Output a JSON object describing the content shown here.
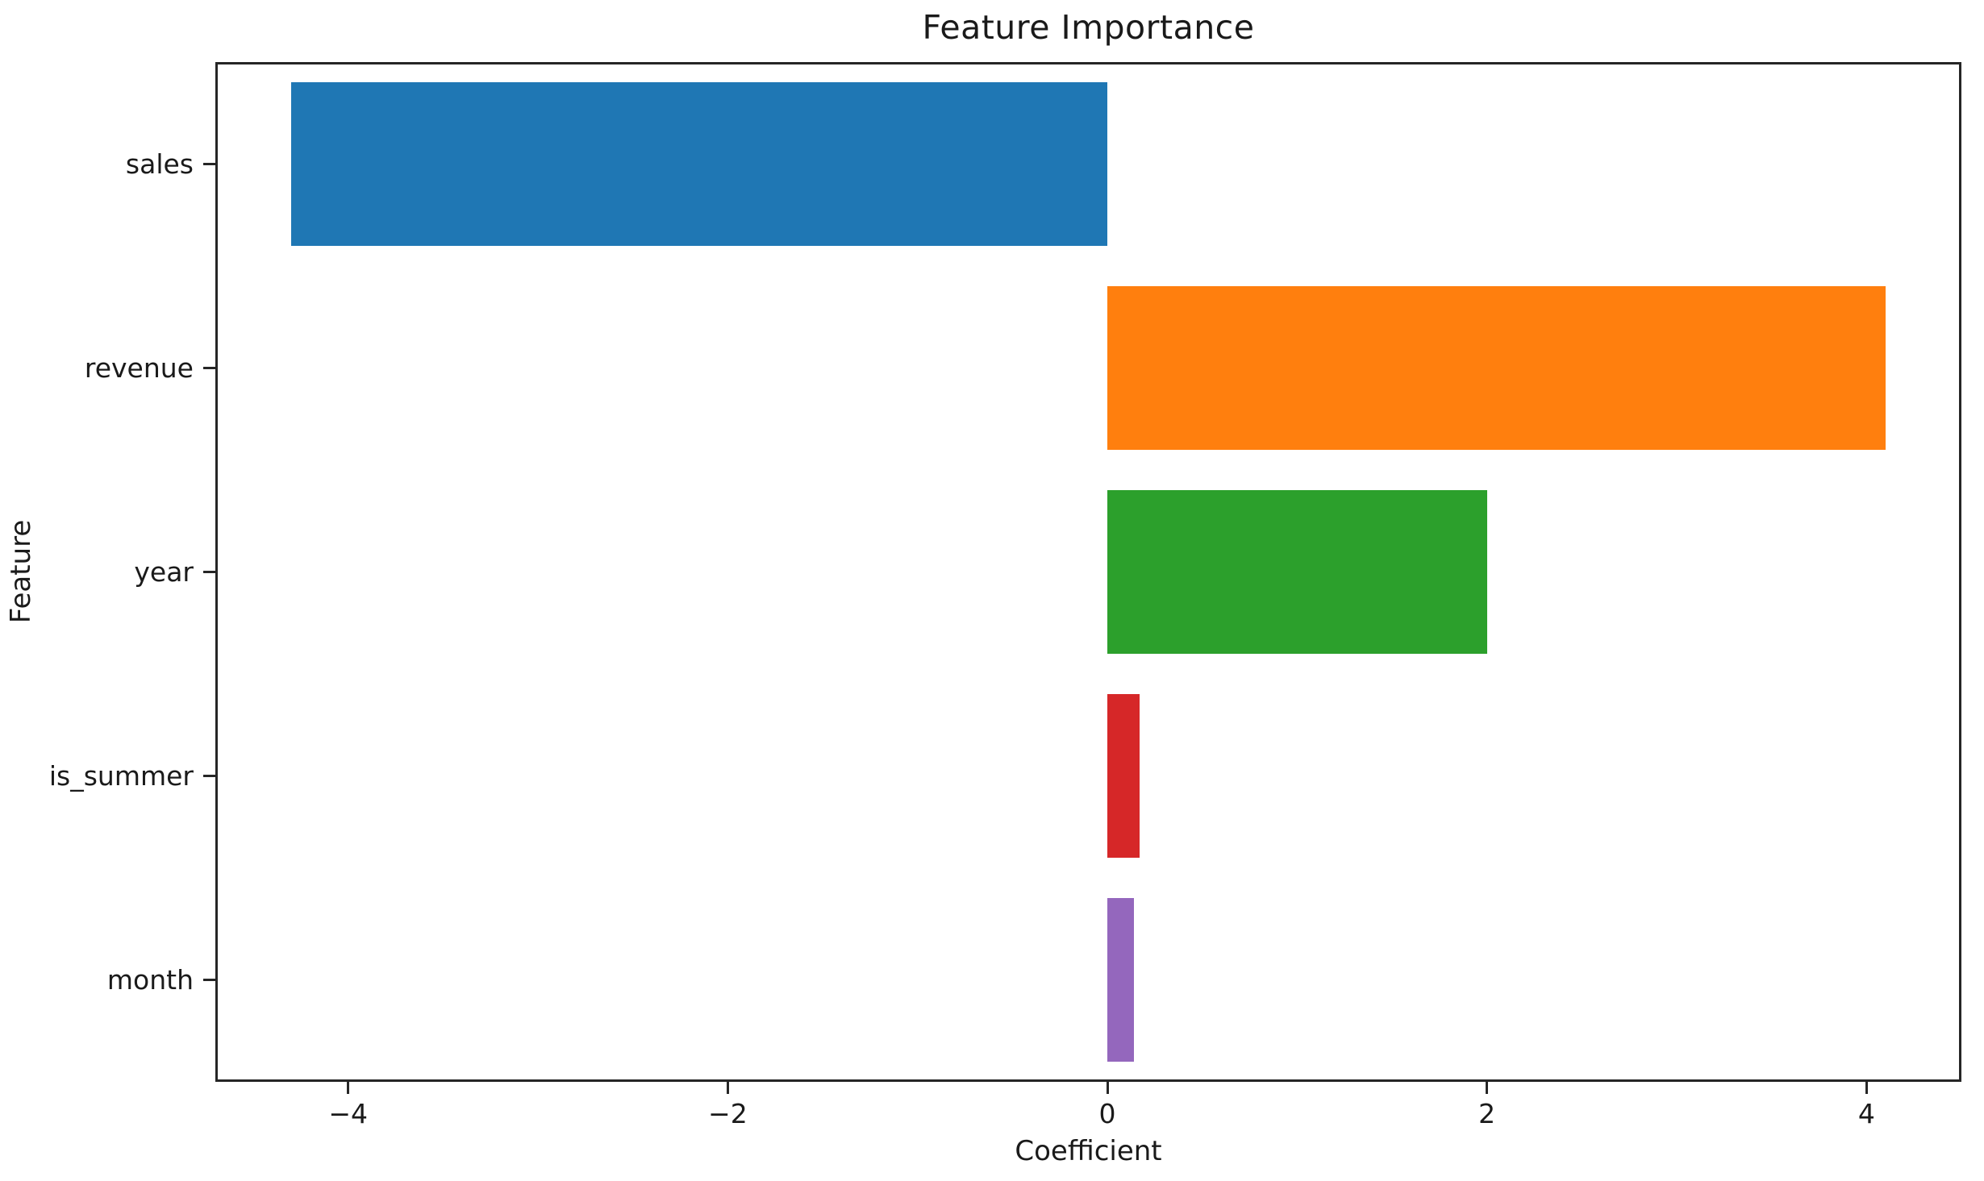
{
  "chart_data": {
    "type": "bar",
    "orientation": "horizontal",
    "title": "Feature Importance",
    "xlabel": "Coefficient",
    "ylabel": "Feature",
    "categories": [
      "sales",
      "revenue",
      "year",
      "is_summer",
      "month"
    ],
    "values": [
      -4.3,
      4.1,
      2.0,
      0.17,
      0.14
    ],
    "bar_colors": [
      "#1f77b4",
      "#ff7f0e",
      "#2ca02c",
      "#d62728",
      "#9467bd"
    ],
    "xlim": [
      -4.7,
      4.5
    ],
    "xticks": [
      -4,
      -2,
      0,
      2,
      4
    ],
    "xtick_labels": [
      "−4",
      "−2",
      "0",
      "2",
      "4"
    ],
    "bar_height_fraction": 0.8,
    "grid": false,
    "legend": null,
    "spine_color": "#262626",
    "text_color": "#1a1a1a",
    "background_color": "#ffffff"
  }
}
